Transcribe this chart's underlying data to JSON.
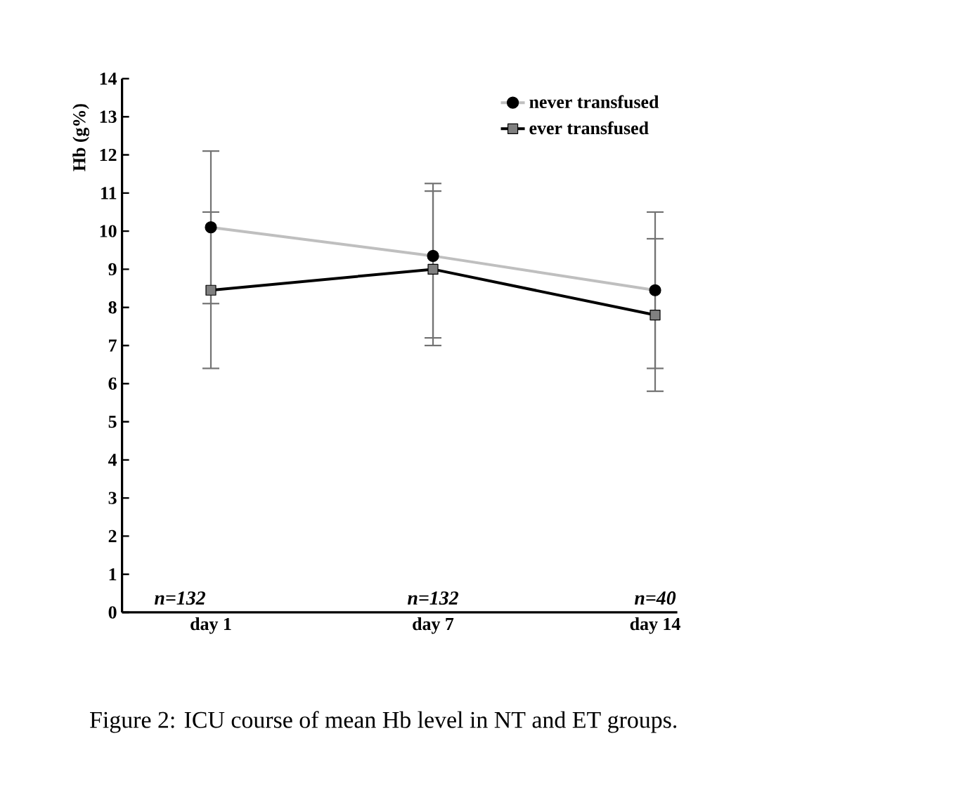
{
  "chart_data": {
    "type": "line",
    "ylabel": "Hb (g%)",
    "categories": [
      "day 1",
      "day 7",
      "day 14"
    ],
    "series": [
      {
        "name": "never transfused",
        "color": "#bfbfbf",
        "marker": "circle",
        "values": [
          10.1,
          9.35,
          8.45
        ],
        "errors": [
          [
            8.1,
            12.1
          ],
          [
            7.2,
            11.25
          ],
          [
            6.4,
            10.5
          ]
        ]
      },
      {
        "name": "ever transfused",
        "color": "#000000",
        "marker": "square",
        "values": [
          8.45,
          9.0,
          7.8
        ],
        "errors": [
          [
            6.4,
            10.5
          ],
          [
            7.0,
            11.05
          ],
          [
            5.8,
            9.8
          ]
        ]
      }
    ],
    "ylim": [
      0,
      14
    ],
    "yticks": [
      0,
      1,
      2,
      3,
      4,
      5,
      6,
      7,
      8,
      9,
      10,
      11,
      12,
      13,
      14
    ],
    "legend": "top right",
    "annotations": [
      "n=132",
      "n=132",
      "n=40",
      "Figure 2: ICU course of mean Hb level in NT and ET groups."
    ]
  }
}
